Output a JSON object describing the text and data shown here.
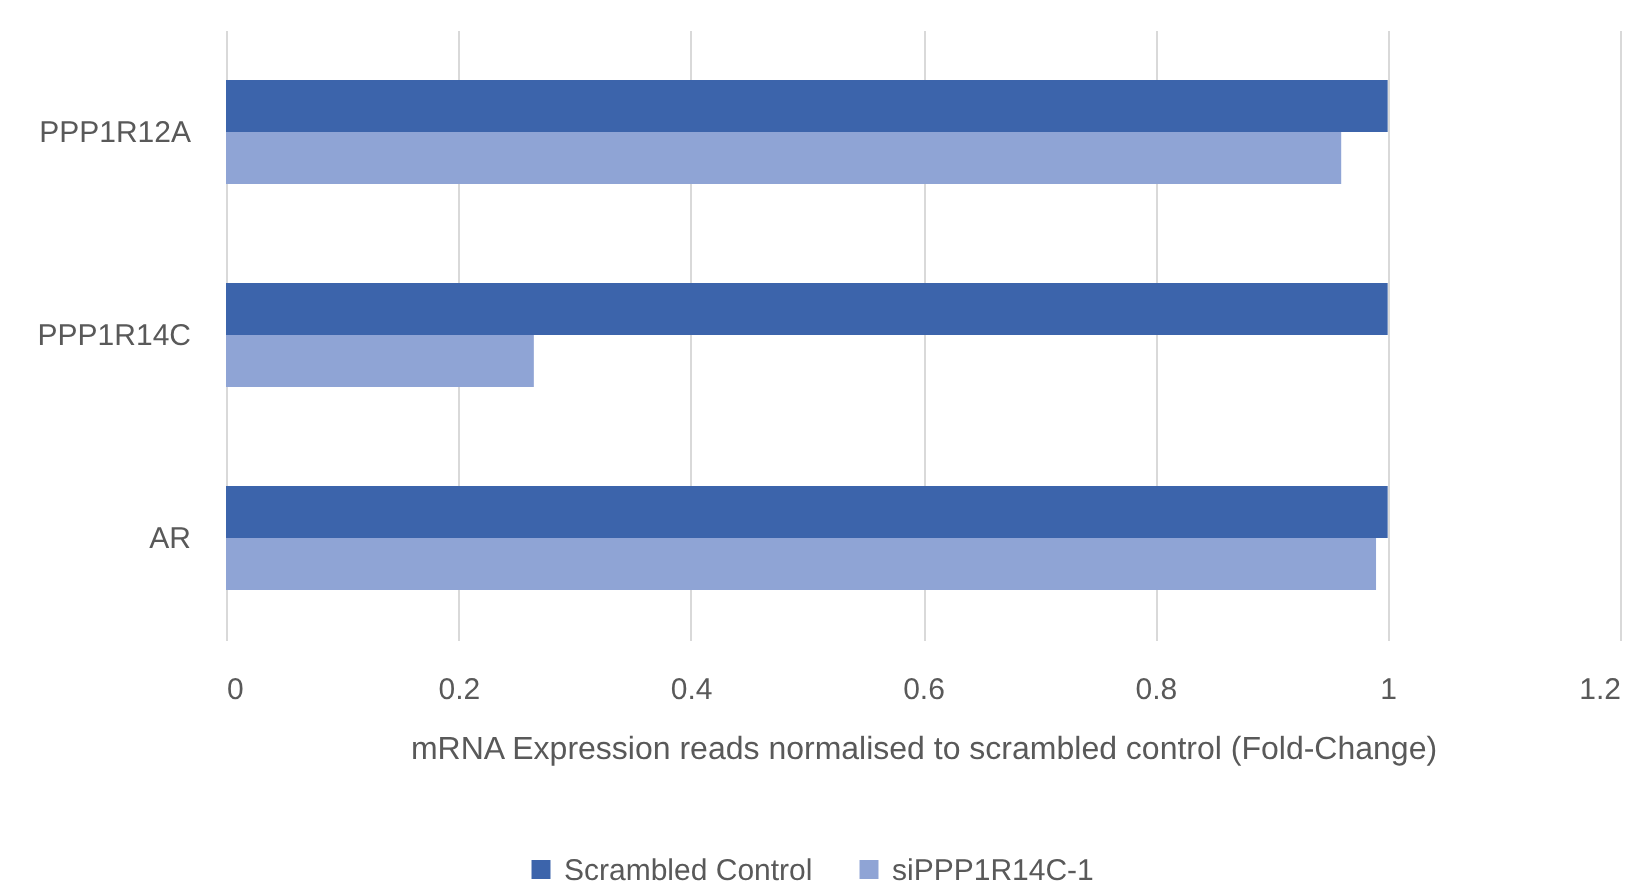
{
  "chart_data": {
    "type": "bar",
    "orientation": "horizontal",
    "categories": [
      "PPP1R12A",
      "PPP1R14C",
      "AR"
    ],
    "series": [
      {
        "name": "Scrambled Control",
        "color": "#3c64ab",
        "values": [
          1,
          1,
          1
        ]
      },
      {
        "name": "siPPP1R14C-1",
        "color": "#8fa4d5",
        "values": [
          0.96,
          0.265,
          0.99
        ]
      }
    ],
    "xlabel": "mRNA Expression reads normalised to scrambled control (Fold-Change)",
    "xlim": [
      0,
      1.2
    ],
    "xticks": [
      0,
      0.2,
      0.4,
      0.6,
      0.8,
      1,
      1.2
    ],
    "grid": "x",
    "legend": "bottom"
  }
}
